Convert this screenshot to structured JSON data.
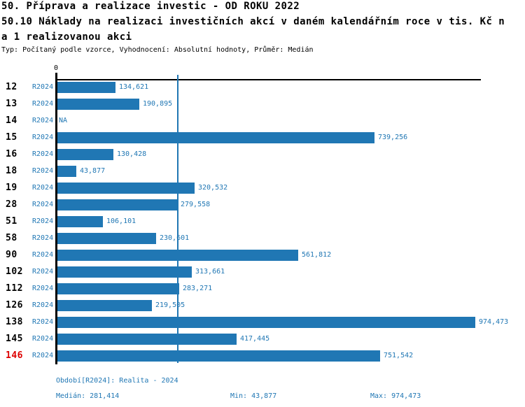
{
  "header": {
    "title_line1": "50. Příprava a realizace investic - OD ROKU 2022",
    "title_line2": "50.10 Náklady na realizaci investičních akcí v daném kalendářním roce v tis. Kč n",
    "title_line3": "a 1 realizovanou akci",
    "subtitle": "Typ: Počítaný podle vzorce, Vyhodnocení: Absolutní hodnoty, Průměr: Medián"
  },
  "chart_data": {
    "type": "bar",
    "orientation": "horizontal",
    "title": "50.10 Náklady na realizaci investičních akcí v daném kalendářním roce v tis. Kč na 1 realizovanou akci",
    "axis_zero_label": "0",
    "series_label": "R2024",
    "categories": [
      "12",
      "13",
      "14",
      "15",
      "16",
      "18",
      "19",
      "28",
      "51",
      "58",
      "90",
      "102",
      "112",
      "126",
      "138",
      "145",
      "146"
    ],
    "values": [
      134621,
      190895,
      null,
      739256,
      130428,
      43877,
      320532,
      279558,
      106101,
      230601,
      561812,
      313661,
      283271,
      219505,
      974473,
      417445,
      751542
    ],
    "value_labels": [
      "134,621",
      "190,895",
      "NA",
      "739,256",
      "130,428",
      "43,877",
      "320,532",
      "279,558",
      "106,101",
      "230,601",
      "561,812",
      "313,661",
      "283,271",
      "219,505",
      "974,473",
      "417,445",
      "751,542"
    ],
    "highlighted_category": "146",
    "median_value": 281414,
    "min_value": 43877,
    "max_value": 974473,
    "xlim": [
      0,
      987000
    ],
    "grid": "median-line-only",
    "legend_position": "none",
    "bar_color": "#2077b4",
    "label_color": "#2077b4",
    "highlight_color": "#dd0000",
    "axis_color": "#000000"
  },
  "footer": {
    "period": "Období[R2024]: Realita - 2024",
    "median": "Medián: 281,414",
    "min": "Min: 43,877",
    "max": "Max: 974,473"
  }
}
